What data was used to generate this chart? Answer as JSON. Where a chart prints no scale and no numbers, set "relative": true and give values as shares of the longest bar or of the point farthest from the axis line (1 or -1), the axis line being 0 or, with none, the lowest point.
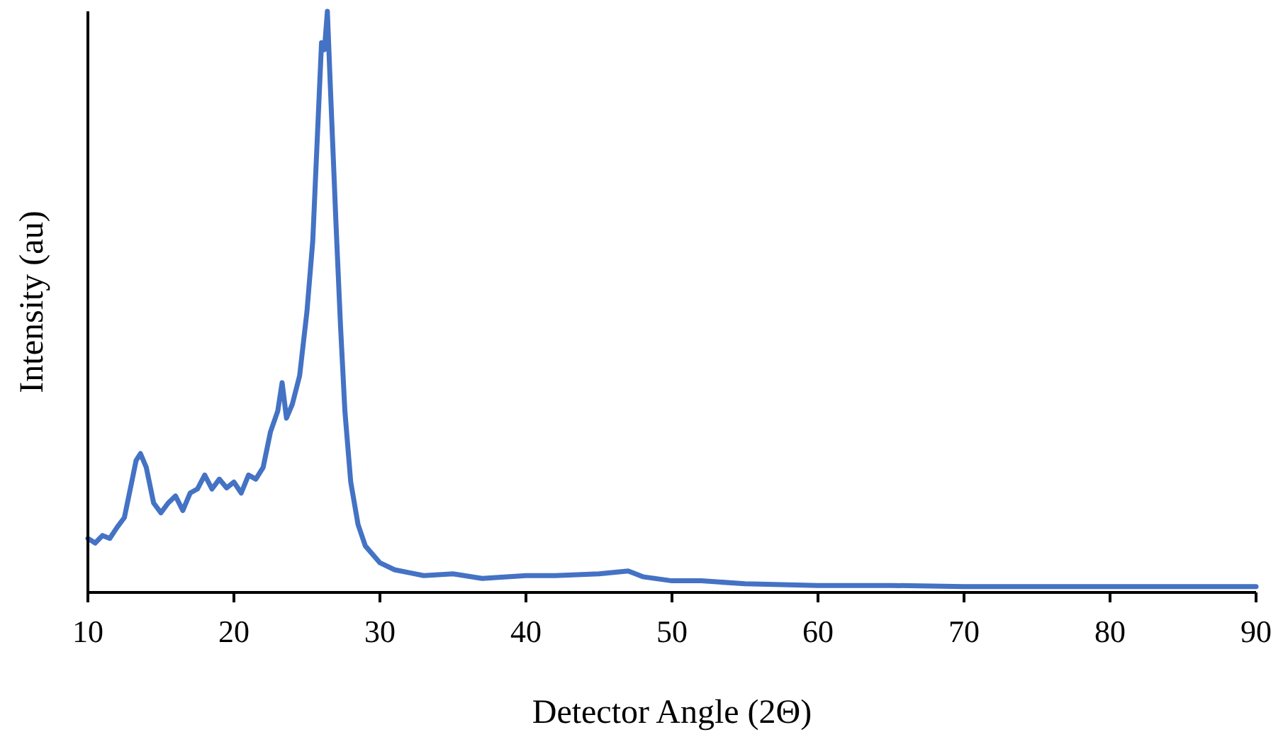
{
  "chart_data": {
    "type": "line",
    "relative": true,
    "xlabel": "Detector Angle (2Θ)",
    "ylabel": "Intensity (au)",
    "xlim": [
      10,
      90
    ],
    "xticks": [
      10,
      20,
      30,
      40,
      50,
      60,
      70,
      80,
      90
    ],
    "line_style": "solid",
    "series": [
      {
        "color": "#4472c4",
        "x": [
          10,
          10.5,
          11,
          11.5,
          12,
          12.5,
          13,
          13.3,
          13.6,
          14,
          14.5,
          15,
          15.5,
          16,
          16.5,
          17,
          17.5,
          18,
          18.5,
          19,
          19.5,
          20,
          20.5,
          21,
          21.5,
          22,
          22.5,
          23,
          23.3,
          23.6,
          24,
          24.5,
          25,
          25.4,
          25.7,
          26,
          26.2,
          26.4,
          26.6,
          26.8,
          27,
          27.3,
          27.6,
          28,
          28.5,
          29,
          30,
          31,
          32,
          33,
          35,
          37,
          40,
          42,
          45,
          47,
          48,
          50,
          52,
          55,
          60,
          65,
          70,
          75,
          80,
          85,
          90
        ],
        "values": [
          0.093,
          0.085,
          0.098,
          0.093,
          0.112,
          0.129,
          0.19,
          0.227,
          0.239,
          0.215,
          0.154,
          0.137,
          0.154,
          0.166,
          0.141,
          0.171,
          0.178,
          0.202,
          0.178,
          0.195,
          0.18,
          0.19,
          0.171,
          0.202,
          0.195,
          0.215,
          0.276,
          0.312,
          0.361,
          0.3,
          0.324,
          0.373,
          0.483,
          0.605,
          0.776,
          0.946,
          0.934,
          1,
          0.873,
          0.751,
          0.629,
          0.459,
          0.312,
          0.19,
          0.117,
          0.08,
          0.051,
          0.039,
          0.034,
          0.029,
          0.032,
          0.024,
          0.029,
          0.029,
          0.032,
          0.037,
          0.027,
          0.02,
          0.02,
          0.015,
          0.012,
          0.012,
          0.01,
          0.01,
          0.01,
          0.01,
          0.01
        ]
      }
    ]
  }
}
